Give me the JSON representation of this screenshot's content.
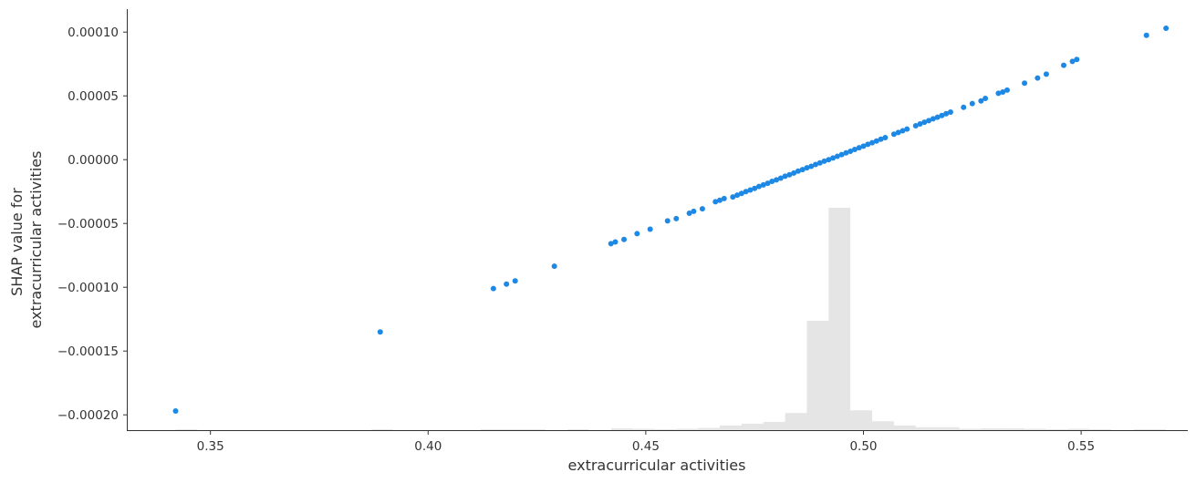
{
  "chart_data": {
    "type": "scatter",
    "title": "",
    "xlabel": "extracurricular activities",
    "ylabel_lines": [
      "SHAP value for",
      "extracurricular activities"
    ],
    "xlim": [
      0.331,
      0.5745
    ],
    "ylim": [
      -0.000212,
      0.000118
    ],
    "xticks": [
      0.35,
      0.4,
      0.45,
      0.5,
      0.55
    ],
    "xtick_labels": [
      "0.35",
      "0.40",
      "0.45",
      "0.50",
      "0.55"
    ],
    "yticks": [
      -0.0002,
      -0.00015,
      -0.0001,
      -5e-05,
      0.0,
      5e-05,
      0.0001
    ],
    "ytick_labels": [
      "−0.00020",
      "−0.00015",
      "−0.00010",
      "−0.00005",
      "0.00000",
      "0.00005",
      "0.00010"
    ],
    "grid": false,
    "point_color": "#1E88E5",
    "histogram_color": "#e5e5e5",
    "series": [
      {
        "x": [
          0.342,
          0.389,
          0.415,
          0.418,
          0.42,
          0.429,
          0.442,
          0.443,
          0.445,
          0.448,
          0.451,
          0.455,
          0.457,
          0.46,
          0.461,
          0.463,
          0.466,
          0.467,
          0.468,
          0.47,
          0.471,
          0.472,
          0.473,
          0.474,
          0.475,
          0.476,
          0.477,
          0.478,
          0.479,
          0.48,
          0.481,
          0.482,
          0.483,
          0.484,
          0.485,
          0.486,
          0.487,
          0.488,
          0.489,
          0.49,
          0.491,
          0.492,
          0.493,
          0.494,
          0.495,
          0.496,
          0.497,
          0.498,
          0.499,
          0.5,
          0.501,
          0.502,
          0.503,
          0.504,
          0.505,
          0.507,
          0.508,
          0.509,
          0.51,
          0.512,
          0.513,
          0.514,
          0.515,
          0.516,
          0.517,
          0.518,
          0.519,
          0.52,
          0.523,
          0.525,
          0.527,
          0.528,
          0.531,
          0.532,
          0.533,
          0.537,
          0.54,
          0.542,
          0.546,
          0.548,
          0.549,
          0.565,
          0.5695
        ],
        "y": [
          -0.000197,
          -0.000135,
          -0.000101,
          -9.75e-05,
          -9.5e-05,
          -8.35e-05,
          -6.58e-05,
          -6.45e-05,
          -6.25e-05,
          -5.8e-05,
          -5.45e-05,
          -4.8e-05,
          -4.62e-05,
          -4.2e-05,
          -4.05e-05,
          -3.85e-05,
          -3.3e-05,
          -3.18e-05,
          -3.05e-05,
          -2.92e-05,
          -2.78e-05,
          -2.65e-05,
          -2.5e-05,
          -2.38e-05,
          -2.25e-05,
          -2.1e-05,
          -1.98e-05,
          -1.85e-05,
          -1.7e-05,
          -1.58e-05,
          -1.45e-05,
          -1.3e-05,
          -1.18e-05,
          -1.05e-05,
          -9e-06,
          -7.8e-06,
          -6.4e-06,
          -5.2e-06,
          -3.8e-06,
          -2.5e-06,
          -1.2e-06,
          0.0,
          1.3e-06,
          2.6e-06,
          4e-06,
          5.3e-06,
          6.6e-06,
          8e-06,
          9.3e-06,
          1.06e-05,
          1.2e-05,
          1.33e-05,
          1.46e-05,
          1.6e-05,
          1.73e-05,
          2e-05,
          2.13e-05,
          2.26e-05,
          2.4e-05,
          2.66e-05,
          2.8e-05,
          2.93e-05,
          3.06e-05,
          3.2e-05,
          3.33e-05,
          3.46e-05,
          3.6e-05,
          3.73e-05,
          4.1e-05,
          4.4e-05,
          4.6e-05,
          4.8e-05,
          5.2e-05,
          5.3e-05,
          5.45e-05,
          6e-05,
          6.4e-05,
          6.7e-05,
          7.4e-05,
          7.7e-05,
          7.85e-05,
          9.75e-05,
          0.000103
        ]
      }
    ],
    "histogram": {
      "bin_edges": [
        0.342,
        0.347,
        0.352,
        0.357,
        0.362,
        0.367,
        0.372,
        0.377,
        0.382,
        0.387,
        0.392,
        0.397,
        0.402,
        0.407,
        0.412,
        0.417,
        0.422,
        0.427,
        0.432,
        0.437,
        0.442,
        0.447,
        0.452,
        0.457,
        0.462,
        0.467,
        0.472,
        0.477,
        0.482,
        0.487,
        0.492,
        0.497,
        0.502,
        0.507,
        0.512,
        0.517,
        0.522,
        0.527,
        0.532,
        0.537,
        0.542,
        0.547,
        0.552,
        0.557,
        0.562,
        0.567,
        0.5695
      ],
      "relative_heights": [
        0.003,
        0,
        0,
        0,
        0,
        0,
        0,
        0,
        0,
        0.003,
        0,
        0,
        0,
        0,
        0.003,
        0.003,
        0.003,
        0,
        0.003,
        0,
        0.008,
        0.006,
        0.003,
        0.006,
        0.01,
        0.021,
        0.029,
        0.037,
        0.077,
        0.492,
        1.0,
        0.089,
        0.04,
        0.021,
        0.013,
        0.013,
        0.006,
        0.008,
        0.008,
        0.006,
        0.003,
        0.006,
        0.003,
        0,
        0.003,
        0.003
      ]
    }
  }
}
